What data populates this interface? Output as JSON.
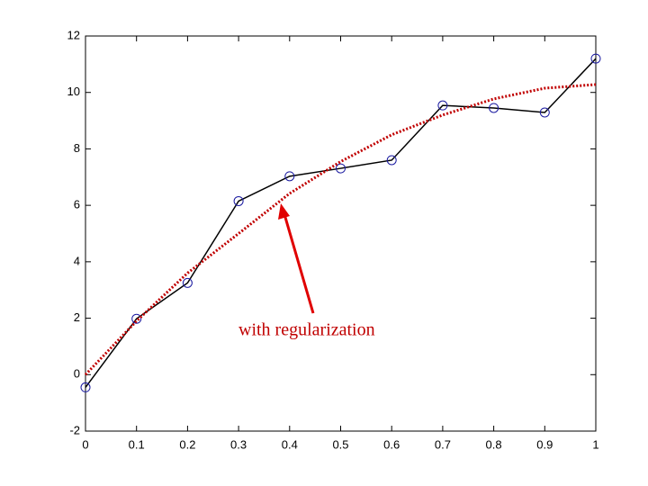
{
  "chart_data": {
    "type": "line",
    "x": [
      0,
      0.1,
      0.2,
      0.3,
      0.4,
      0.5,
      0.6,
      0.7,
      0.8,
      0.9,
      1
    ],
    "series": [
      {
        "color": "#000000",
        "line_style": "solid",
        "marker": "o",
        "marker_color": "#1a1aa0",
        "values": [
          -0.45,
          1.98,
          3.25,
          6.15,
          7.03,
          7.31,
          7.6,
          9.54,
          9.45,
          9.29,
          11.2
        ]
      },
      {
        "color": "#c00000",
        "line_style": "dotted",
        "values": [
          0.0,
          1.9,
          3.6,
          5.0,
          6.42,
          7.55,
          8.5,
          9.2,
          9.77,
          10.15,
          10.28
        ]
      }
    ],
    "xlim": [
      0,
      1
    ],
    "xticks": [
      0,
      0.1,
      0.2,
      0.3,
      0.4,
      0.5,
      0.6,
      0.7,
      0.8,
      0.9,
      1
    ],
    "ylim": [
      -2,
      12
    ],
    "yticks": [
      -2,
      0,
      2,
      4,
      6,
      8,
      10,
      12
    ],
    "grid": false,
    "annotation": "with regularization"
  }
}
